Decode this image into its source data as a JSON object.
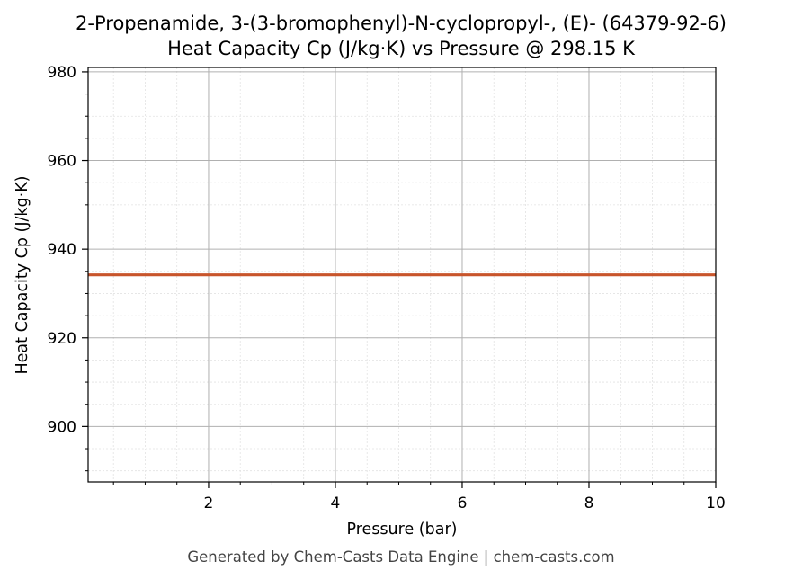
{
  "chart_data": {
    "type": "line",
    "title": "2-Propenamide, 3-(3-bromophenyl)-N-cyclopropyl-, (E)- (64379-92-6)",
    "subtitle": "Heat Capacity Cp (J/kg·K) vs Pressure @ 298.15 K",
    "xlabel": "Pressure (bar)",
    "ylabel": "Heat Capacity Cp (J/kg·K)",
    "xlim": [
      0.1,
      10
    ],
    "ylim": [
      887.5,
      981
    ],
    "x_ticks": [
      2,
      4,
      6,
      8,
      10
    ],
    "y_ticks": [
      900,
      920,
      940,
      960,
      980
    ],
    "x_minor_step": 0.5,
    "y_minor_step": 5,
    "grid": true,
    "series": [
      {
        "color": "#c8552b",
        "x": [
          0.1,
          10
        ],
        "y": [
          934.2,
          934.2
        ]
      }
    ]
  },
  "footer": "Generated by Chem-Casts Data Engine | chem-casts.com"
}
